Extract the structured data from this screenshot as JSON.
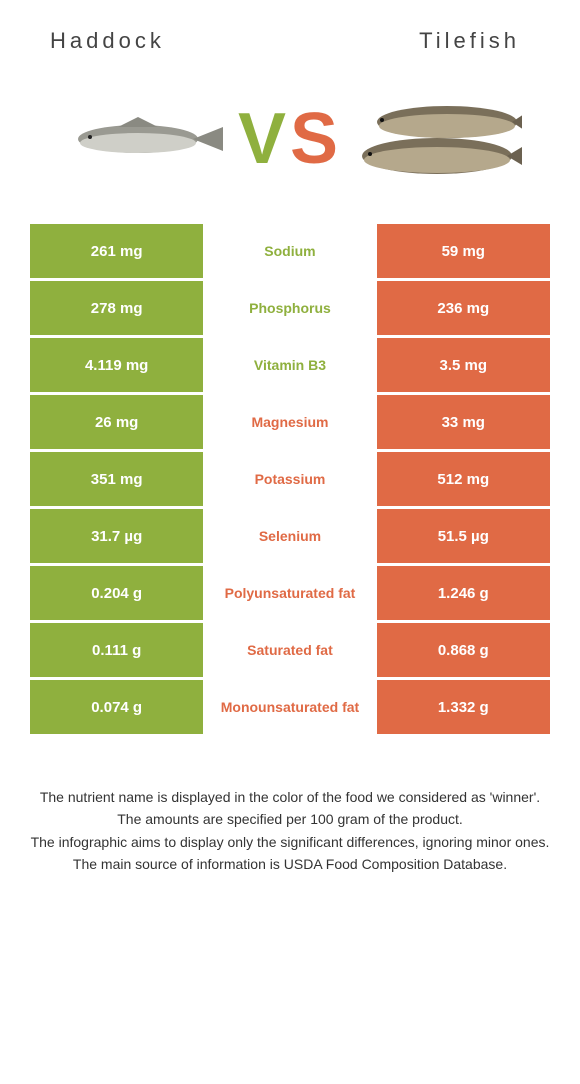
{
  "header": {
    "left_name": "Haddock",
    "right_name": "Tilefish"
  },
  "vs": "VS",
  "colors": {
    "left": "#8fb03e",
    "right": "#e06a45",
    "left_text_winner": "#8fb03e",
    "right_text_winner": "#e06a45"
  },
  "rows": [
    {
      "left": "261 mg",
      "label": "Sodium",
      "right": "59 mg",
      "winner": "left"
    },
    {
      "left": "278 mg",
      "label": "Phosphorus",
      "right": "236 mg",
      "winner": "left"
    },
    {
      "left": "4.119 mg",
      "label": "Vitamin B3",
      "right": "3.5 mg",
      "winner": "left"
    },
    {
      "left": "26 mg",
      "label": "Magnesium",
      "right": "33 mg",
      "winner": "right"
    },
    {
      "left": "351 mg",
      "label": "Potassium",
      "right": "512 mg",
      "winner": "right"
    },
    {
      "left": "31.7 µg",
      "label": "Selenium",
      "right": "51.5 µg",
      "winner": "right"
    },
    {
      "left": "0.204 g",
      "label": "Polyunsaturated fat",
      "right": "1.246 g",
      "winner": "right"
    },
    {
      "left": "0.111 g",
      "label": "Saturated fat",
      "right": "0.868 g",
      "winner": "right"
    },
    {
      "left": "0.074 g",
      "label": "Monounsaturated fat",
      "right": "1.332 g",
      "winner": "right"
    }
  ],
  "footer": [
    "The nutrient name is displayed in the color of the food we considered as 'winner'.",
    "The amounts are specified per 100 gram of the product.",
    "The infographic aims to display only the significant differences, ignoring minor ones.",
    "The main source of information is USDA Food Composition Database."
  ]
}
